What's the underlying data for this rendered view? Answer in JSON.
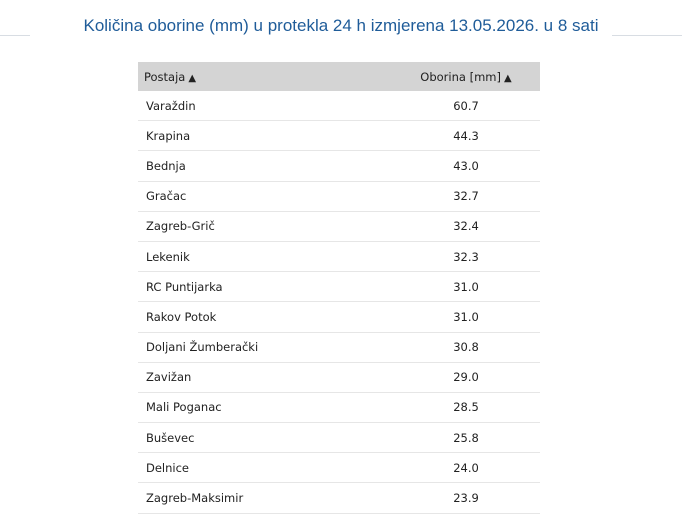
{
  "header": {
    "title": "Količina oborine (mm) u protekla 24 h izmjerena 13.05.2026. u 8 sati"
  },
  "table": {
    "columns": [
      "Postaja",
      "Oborina [mm]"
    ],
    "rows": [
      [
        "Varaždin",
        "60.7"
      ],
      [
        "Krapina",
        "44.3"
      ],
      [
        "Bednja",
        "43.0"
      ],
      [
        "Gračac",
        "32.7"
      ],
      [
        "Zagreb-Grič",
        "32.4"
      ],
      [
        "Lekenik",
        "32.3"
      ],
      [
        "RC Puntijarka",
        "31.0"
      ],
      [
        "Rakov Potok",
        "31.0"
      ],
      [
        "Doljani Žumberački",
        "30.8"
      ],
      [
        "Zavižan",
        "29.0"
      ],
      [
        "Mali Poganac",
        "28.5"
      ],
      [
        "Buševec",
        "25.8"
      ],
      [
        "Delnice",
        "24.0"
      ],
      [
        "Zagreb-Maksimir",
        "23.9"
      ]
    ]
  }
}
